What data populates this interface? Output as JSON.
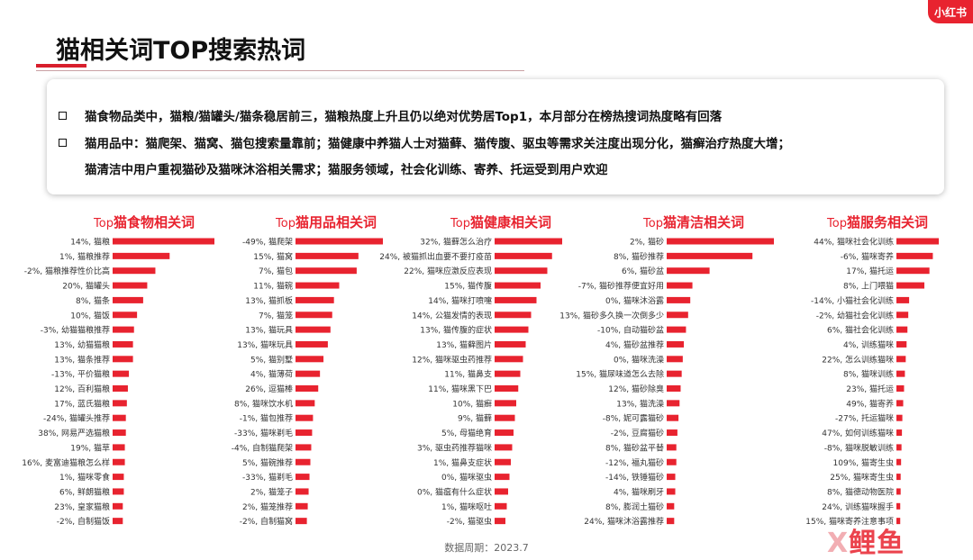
{
  "brand": {
    "logo_text": "小红书",
    "watermark_x": "X",
    "watermark_text": "鲤鱼"
  },
  "title": "猫相关词TOP搜索热词",
  "summary": {
    "line1": "猫食物品类中，猫粮/猫罐头/猫条稳居前三，猫粮热度上升且仍以绝对优势居Top1，本月部分在榜热搜词热度略有回落",
    "line2": "猫用品中：猫爬架、猫窝、猫包搜索量靠前；猫健康中养猫人士对猫藓、猫传腹、驱虫等需求关注度出现分化，猫癣治疗热度大增；",
    "line3": "猫清洁中用户重视猫砂及猫咪沐浴相关需求；猫服务领域，社会化训练、寄养、托运受到用户欢迎"
  },
  "footer": "数据周期：2023.7",
  "colors": {
    "accent": "#d81e2c",
    "bar": "#e8232f",
    "text": "#222222"
  },
  "chart_data": [
    {
      "type": "bar",
      "title_prefix": "Top",
      "title_main": "猫食物相关词",
      "categories": [
        {
          "label": "14%, 猫粮",
          "value": 100
        },
        {
          "label": "1%, 猫粮推荐",
          "value": 56
        },
        {
          "label": "-2%, 猫粮推荐性价比高",
          "value": 42
        },
        {
          "label": "20%, 猫罐头",
          "value": 34
        },
        {
          "label": "8%, 猫条",
          "value": 30
        },
        {
          "label": "10%, 猫饭",
          "value": 24
        },
        {
          "label": "-3%, 幼猫猫粮推荐",
          "value": 21
        },
        {
          "label": "13%, 幼猫猫粮",
          "value": 20
        },
        {
          "label": "13%, 猫条推荐",
          "value": 20
        },
        {
          "label": "-13%, 平价猫粮",
          "value": 16
        },
        {
          "label": "12%, 百利猫粮",
          "value": 15
        },
        {
          "label": "17%, 蓝氏猫粮",
          "value": 14
        },
        {
          "label": "-24%, 猫罐头推荐",
          "value": 13
        },
        {
          "label": "38%, 网易严选猫粮",
          "value": 13
        },
        {
          "label": "19%, 猫草",
          "value": 12
        },
        {
          "label": "16%, 麦富迪猫粮怎么样",
          "value": 12
        },
        {
          "label": "1%, 猫咪零食",
          "value": 11
        },
        {
          "label": "6%, 鲜朗猫粮",
          "value": 11
        },
        {
          "label": "23%, 皇家猫粮",
          "value": 10
        },
        {
          "label": "-2%, 自制猫饭",
          "value": 10
        }
      ]
    },
    {
      "type": "bar",
      "title_prefix": "Top",
      "title_main": "猫用品相关词",
      "categories": [
        {
          "label": "-49%, 猫爬架",
          "value": 100
        },
        {
          "label": "15%, 猫窝",
          "value": 72
        },
        {
          "label": "7%, 猫包",
          "value": 70
        },
        {
          "label": "11%, 猫碗",
          "value": 50
        },
        {
          "label": "13%, 猫抓板",
          "value": 44
        },
        {
          "label": "7%, 猫笼",
          "value": 42
        },
        {
          "label": "13%, 猫玩具",
          "value": 40
        },
        {
          "label": "13%, 猫咪玩具",
          "value": 37
        },
        {
          "label": "5%, 猫别墅",
          "value": 32
        },
        {
          "label": "4%, 猫薄荷",
          "value": 28
        },
        {
          "label": "26%, 逗猫棒",
          "value": 26
        },
        {
          "label": "8%, 猫咪饮水机",
          "value": 22
        },
        {
          "label": "-1%, 猫包推荐",
          "value": 20
        },
        {
          "label": "-33%, 猫咪剃毛",
          "value": 19
        },
        {
          "label": "-4%, 自制猫爬架",
          "value": 18
        },
        {
          "label": "5%, 猫碗推荐",
          "value": 17
        },
        {
          "label": "-33%, 猫剃毛",
          "value": 16
        },
        {
          "label": "2%, 猫笼子",
          "value": 15
        },
        {
          "label": "2%, 猫笼推荐",
          "value": 14
        },
        {
          "label": "-2%, 自制猫窝",
          "value": 13
        }
      ]
    },
    {
      "type": "bar",
      "title_prefix": "Top",
      "title_main": "猫健康相关词",
      "categories": [
        {
          "label": "32%, 猫藓怎么治疗",
          "value": 100
        },
        {
          "label": "24%, 被猫抓出血要不要打疫苗",
          "value": 85
        },
        {
          "label": "22%, 猫咪应激反应表现",
          "value": 78
        },
        {
          "label": "15%, 猫传腹",
          "value": 68
        },
        {
          "label": "14%, 猫咪打喷嚏",
          "value": 62
        },
        {
          "label": "14%, 公猫发情的表现",
          "value": 54
        },
        {
          "label": "13%, 猫传腹的症状",
          "value": 50
        },
        {
          "label": "13%, 猫藓图片",
          "value": 46
        },
        {
          "label": "12%, 猫咪驱虫药推荐",
          "value": 42
        },
        {
          "label": "11%, 猫鼻支",
          "value": 38
        },
        {
          "label": "11%, 猫咪黑下巴",
          "value": 35
        },
        {
          "label": "10%, 猫癣",
          "value": 32
        },
        {
          "label": "9%, 猫藓",
          "value": 30
        },
        {
          "label": "5%, 母猫绝育",
          "value": 28
        },
        {
          "label": "3%, 驱虫药推荐猫咪",
          "value": 26
        },
        {
          "label": "1%, 猫鼻支症状",
          "value": 24
        },
        {
          "label": "0%, 猫咪驱虫",
          "value": 22
        },
        {
          "label": "0%, 猫瘟有什么症状",
          "value": 20
        },
        {
          "label": "1%, 猫咪呕吐",
          "value": 18
        },
        {
          "label": "-2%, 猫驱虫",
          "value": 16
        }
      ]
    },
    {
      "type": "bar",
      "title_prefix": "Top",
      "title_main": "猫清洁相关词",
      "categories": [
        {
          "label": "2%, 猫砂",
          "value": 100
        },
        {
          "label": "8%, 猫砂推荐",
          "value": 80
        },
        {
          "label": "6%, 猫砂盆",
          "value": 40
        },
        {
          "label": "-7%, 猫砂推荐便宜好用",
          "value": 24
        },
        {
          "label": "0%, 猫咪沐浴露",
          "value": 22
        },
        {
          "label": "13%, 猫砂多久换一次倒多少",
          "value": 20
        },
        {
          "label": "-10%, 自动猫砂盆",
          "value": 18
        },
        {
          "label": "4%, 猫砂盆推荐",
          "value": 16
        },
        {
          "label": "0%, 猫咪洗澡",
          "value": 15
        },
        {
          "label": "15%, 猫尿味道怎么去除",
          "value": 14
        },
        {
          "label": "12%, 猫砂除臭",
          "value": 13
        },
        {
          "label": "13%, 猫洗澡",
          "value": 12
        },
        {
          "label": "-8%, 妮可露猫砂",
          "value": 11
        },
        {
          "label": "-2%, 豆腐猫砂",
          "value": 10
        },
        {
          "label": "8%, 猫砂盆平替",
          "value": 9
        },
        {
          "label": "-12%, 福丸猫砂",
          "value": 9
        },
        {
          "label": "-14%, 铁锤猫砂",
          "value": 8
        },
        {
          "label": "4%, 猫咪刷牙",
          "value": 8
        },
        {
          "label": "8%, 膨润土猫砂",
          "value": 7
        },
        {
          "label": "24%, 猫咪沐浴露推荐",
          "value": 7
        }
      ]
    },
    {
      "type": "bar",
      "title_prefix": "Top",
      "title_main": "猫服务相关词",
      "categories": [
        {
          "label": "44%, 猫咪社会化训练",
          "value": 100
        },
        {
          "label": "-6%, 猫咪寄养",
          "value": 86
        },
        {
          "label": "17%, 猫托运",
          "value": 78
        },
        {
          "label": "8%, 上门喂猫",
          "value": 66
        },
        {
          "label": "-14%, 小猫社会化训练",
          "value": 30
        },
        {
          "label": "-2%, 幼猫社会化训练",
          "value": 28
        },
        {
          "label": "6%, 猫社会化训练",
          "value": 26
        },
        {
          "label": "4%, 训练猫咪",
          "value": 24
        },
        {
          "label": "22%, 怎么训练猫咪",
          "value": 22
        },
        {
          "label": "8%, 猫咪训练",
          "value": 20
        },
        {
          "label": "23%, 猫托运",
          "value": 18
        },
        {
          "label": "49%, 猫寄养",
          "value": 16
        },
        {
          "label": "-27%, 托运猫咪",
          "value": 14
        },
        {
          "label": "47%, 如何训练猫咪",
          "value": 13
        },
        {
          "label": "-8%, 猫咪脱敏训练",
          "value": 12
        },
        {
          "label": "109%, 猫寄生虫",
          "value": 11
        },
        {
          "label": "25%, 猫咪寄生虫",
          "value": 10
        },
        {
          "label": "8%, 猫德动物医院",
          "value": 10
        },
        {
          "label": "24%, 训练猫咪握手",
          "value": 9
        },
        {
          "label": "15%, 猫咪寄养注意事项",
          "value": 9
        }
      ]
    }
  ]
}
